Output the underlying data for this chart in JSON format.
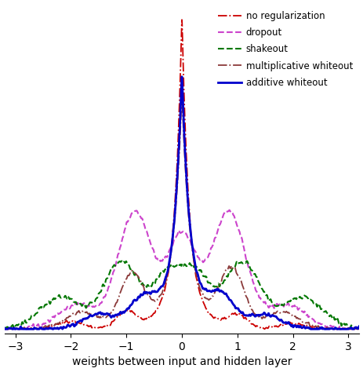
{
  "title": "",
  "xlabel": "weights between input and hidden layer",
  "ylabel": "",
  "xlim": [
    -3.2,
    3.2
  ],
  "ylim": [
    -0.015,
    1.05
  ],
  "legend_entries": [
    {
      "label": "no regularization",
      "color": "#cc0000",
      "linestyle": "dashdot",
      "linewidth": 1.3
    },
    {
      "label": "dropout",
      "color": "#cc44cc",
      "linestyle": "dashed",
      "linewidth": 1.5
    },
    {
      "label": "shakeout",
      "color": "#007700",
      "linestyle": "dashed",
      "linewidth": 1.5
    },
    {
      "label": "multiplicative whiteout",
      "color": "#8B3A3A",
      "linestyle": "dashdot",
      "linewidth": 1.3
    },
    {
      "label": "additive whiteout",
      "color": "#0000cc",
      "linestyle": "solid",
      "linewidth": 2.0
    }
  ],
  "xticks": [
    -3,
    -2,
    -1,
    0,
    1,
    2,
    3
  ],
  "background_color": "#ffffff"
}
